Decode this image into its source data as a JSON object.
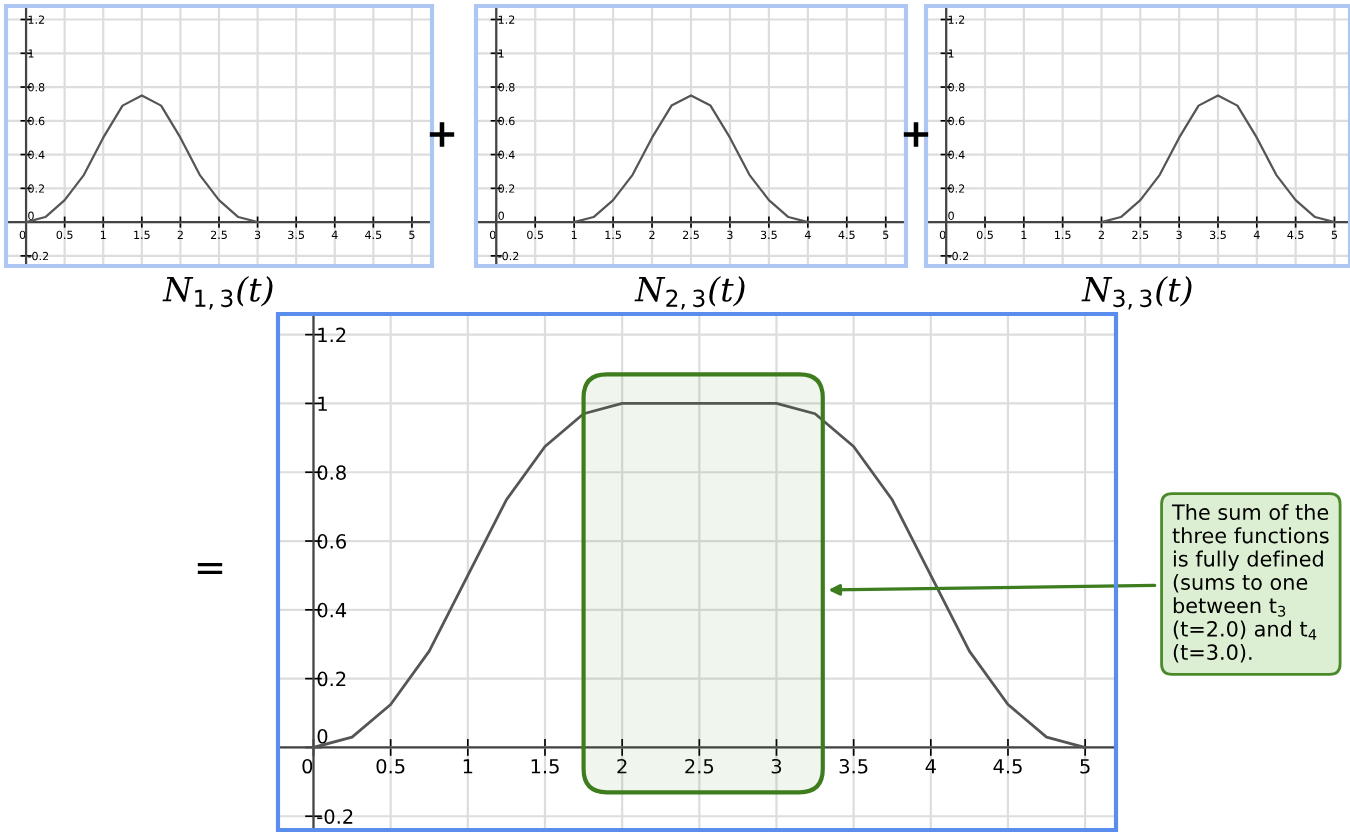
{
  "chart_data": [
    {
      "type": "line",
      "title": "N$_{1,3}$(t)",
      "x": [
        0,
        0.25,
        0.5,
        0.75,
        1,
        1.25,
        1.5,
        1.75,
        2,
        2.25,
        2.5,
        2.75,
        3
      ],
      "values": [
        0,
        0.03,
        0.13,
        0.28,
        0.5,
        0.69,
        0.75,
        0.69,
        0.5,
        0.28,
        0.13,
        0.03,
        0
      ],
      "color": "#555555",
      "xlim": [
        -0.26,
        5.26
      ],
      "ylim": [
        -0.26,
        1.28
      ],
      "xticks": [
        0,
        0.5,
        1,
        1.5,
        2,
        2.5,
        3,
        3.5,
        4,
        4.5,
        5
      ],
      "yticks": [
        -0.2,
        0,
        0.2,
        0.4,
        0.6,
        0.8,
        1,
        1.2
      ],
      "grid": true,
      "annotations": [
        "+"
      ]
    },
    {
      "type": "line",
      "title": "N$_{2,3}$(t)",
      "x": [
        1,
        1.25,
        1.5,
        1.75,
        2,
        2.25,
        2.5,
        2.75,
        3,
        3.25,
        3.5,
        3.75,
        4
      ],
      "values": [
        0,
        0.03,
        0.13,
        0.28,
        0.5,
        0.69,
        0.75,
        0.69,
        0.5,
        0.28,
        0.13,
        0.03,
        0
      ],
      "color": "#555555",
      "xlim": [
        -0.26,
        5.26
      ],
      "ylim": [
        -0.26,
        1.28
      ],
      "xticks": [
        0,
        0.5,
        1,
        1.5,
        2,
        2.5,
        3,
        3.5,
        4,
        4.5,
        5
      ],
      "yticks": [
        -0.2,
        0,
        0.2,
        0.4,
        0.6,
        0.8,
        1,
        1.2
      ],
      "grid": true,
      "annotations": [
        "+"
      ]
    },
    {
      "type": "line",
      "title": "N$_{3,3}$(t)",
      "x": [
        2,
        2.25,
        2.5,
        2.75,
        3,
        3.25,
        3.5,
        3.75,
        4,
        4.25,
        4.5,
        4.75,
        5
      ],
      "values": [
        0,
        0.03,
        0.13,
        0.28,
        0.5,
        0.69,
        0.75,
        0.69,
        0.5,
        0.28,
        0.13,
        0.03,
        0
      ],
      "color": "#555555",
      "xlim": [
        -0.26,
        5.2
      ],
      "ylim": [
        -0.26,
        1.28
      ],
      "xticks": [
        0,
        0.5,
        1,
        1.5,
        2,
        2.5,
        3,
        3.5,
        4,
        4.5,
        5
      ],
      "yticks": [
        -0.2,
        0,
        0.2,
        0.4,
        0.6,
        0.8,
        1,
        1.2
      ],
      "grid": true
    },
    {
      "type": "line",
      "x": [
        0,
        0.25,
        0.5,
        0.75,
        1,
        1.25,
        1.5,
        1.75,
        2,
        2.25,
        2.5,
        2.75,
        3,
        3.25,
        3.5,
        3.75,
        4,
        4.25,
        4.5,
        4.75,
        5
      ],
      "values": [
        0,
        0.03,
        0.125,
        0.28,
        0.5,
        0.72,
        0.875,
        0.97,
        1,
        1,
        1,
        1,
        1,
        0.97,
        0.875,
        0.72,
        0.5,
        0.28,
        0.125,
        0.03,
        0
      ],
      "color": "#555555",
      "xlim": [
        -0.23,
        5.2
      ],
      "ylim": [
        -0.24,
        1.26
      ],
      "xticks": [
        0,
        0.5,
        1,
        1.5,
        2,
        2.5,
        3,
        3.5,
        4,
        4.5,
        5
      ],
      "yticks": [
        -0.2,
        0,
        0.2,
        0.4,
        0.6,
        0.8,
        1,
        1.2
      ],
      "grid": true,
      "bands": [
        {
          "axis": "x",
          "from": 1.75,
          "to": 3.3,
          "color": "#3e7d1e"
        }
      ],
      "annotations": [
        "=",
        "The sum of the three functions is fully defined (sums to one between t$_{3}$ (t=2.0) and t$_{4}$ (t=3.0)."
      ]
    }
  ]
}
